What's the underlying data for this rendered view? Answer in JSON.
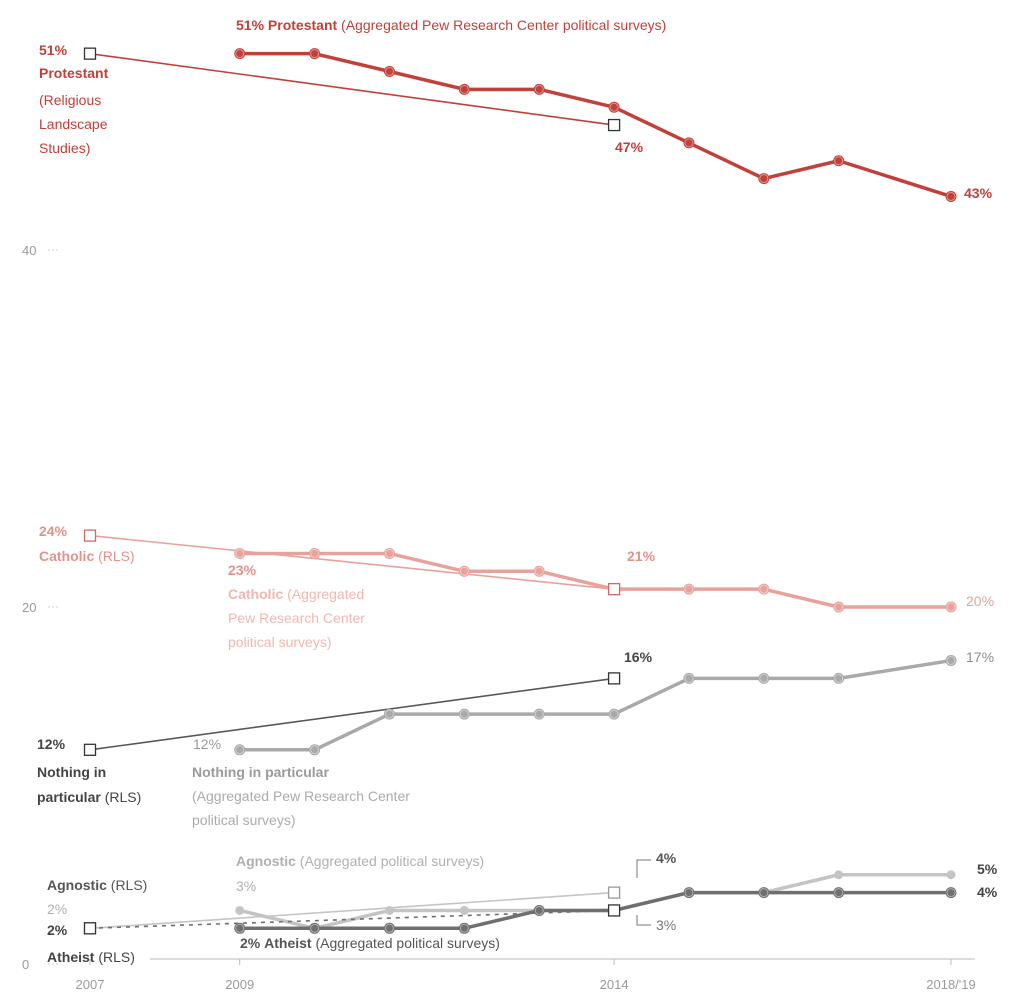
{
  "chart_data": {
    "type": "line",
    "x_ticks": [
      "2007",
      "2009",
      "2014",
      "2018/'19"
    ],
    "y_ticks": [
      {
        "value": 0,
        "label": "0"
      },
      {
        "value": 20,
        "label": "20"
      },
      {
        "value": 40,
        "label": "40"
      }
    ],
    "ylim": [
      0,
      52
    ],
    "grid": false,
    "colors": {
      "protestant": "#c1403a",
      "catholic": "#e8a29c",
      "nothing": "#a9a9a9",
      "nothing_rls": "#595959",
      "agnostic": "#c4c4c4",
      "atheist": "#6f6f6f",
      "axis_text": "#9a9a9a"
    },
    "series": [
      {
        "key": "protestant",
        "source": "survey",
        "x": [
          2009,
          2010,
          2011,
          2012,
          2013,
          2014,
          2015,
          2016,
          2017,
          2018.5
        ],
        "values": [
          51,
          51,
          50,
          49,
          49,
          48,
          46,
          44,
          45,
          43
        ]
      },
      {
        "key": "protestant",
        "source": "rls",
        "x": [
          2007,
          2014
        ],
        "values": [
          51,
          47
        ]
      },
      {
        "key": "catholic",
        "source": "survey",
        "x": [
          2009,
          2010,
          2011,
          2012,
          2013,
          2014,
          2015,
          2016,
          2017,
          2018.5
        ],
        "values": [
          23,
          23,
          23,
          22,
          22,
          21,
          21,
          21,
          20,
          20
        ]
      },
      {
        "key": "catholic",
        "source": "rls",
        "x": [
          2007,
          2014
        ],
        "values": [
          24,
          21
        ]
      },
      {
        "key": "nothing",
        "source": "survey",
        "x": [
          2009,
          2010,
          2011,
          2012,
          2013,
          2014,
          2015,
          2016,
          2017,
          2018.5
        ],
        "values": [
          12,
          12,
          14,
          14,
          14,
          14,
          16,
          16,
          16,
          17
        ]
      },
      {
        "key": "nothing_rls",
        "source": "rls",
        "x": [
          2007,
          2014
        ],
        "values": [
          12,
          16
        ]
      },
      {
        "key": "agnostic",
        "source": "survey",
        "x": [
          2009,
          2010,
          2011,
          2012,
          2013,
          2014,
          2015,
          2016,
          2017,
          2018.5
        ],
        "values": [
          3,
          2,
          3,
          3,
          3,
          3,
          4,
          4,
          5,
          5
        ]
      },
      {
        "key": "agnostic",
        "source": "rls",
        "x": [
          2007,
          2014
        ],
        "values": [
          2,
          4
        ]
      },
      {
        "key": "atheist",
        "source": "survey",
        "x": [
          2009,
          2010,
          2011,
          2012,
          2013,
          2014,
          2015,
          2016,
          2017,
          2018.5
        ],
        "values": [
          2,
          2,
          2,
          2,
          3,
          3,
          4,
          4,
          4,
          4
        ]
      },
      {
        "key": "atheist",
        "source": "rls",
        "x": [
          2007,
          2014
        ],
        "values": [
          2,
          3
        ]
      }
    ],
    "labels": {
      "protestant_survey_start_pct": "51%",
      "protestant_survey_name": "Protestant",
      "protestant_survey_source": "(Aggregated Pew Research Center political surveys)",
      "protestant_rls_pct": "51%",
      "protestant_rls_name": "Protestant",
      "protestant_rls_src1": "(Religious",
      "protestant_rls_src2": "Landscape",
      "protestant_rls_src3": "Studies)",
      "protestant_2014": "47%",
      "protestant_end": "43%",
      "catholic_rls_pct": "24%",
      "catholic_rls_name": "Catholic",
      "catholic_rls_src": "(RLS)",
      "catholic_survey_pct": "23%",
      "catholic_survey_name": "Catholic",
      "catholic_survey_src1": "(Aggregated",
      "catholic_survey_src2": "Pew Research Center",
      "catholic_survey_src3": "political surveys)",
      "catholic_2014": "21%",
      "catholic_end": "20%",
      "nothing_2014": "16%",
      "nothing_end": "17%",
      "nothing_rls_pct": "12%",
      "nothing_rls_name1": "Nothing in",
      "nothing_rls_name2": "particular",
      "nothing_rls_src": "(RLS)",
      "nothing_survey_pct": "12%",
      "nothing_survey_name": "Nothing in particular",
      "nothing_survey_src1": "(Aggregated Pew Research Center",
      "nothing_survey_src2": "political surveys)",
      "agnostic_survey_name": "Agnostic",
      "agnostic_survey_src": "(Aggregated political surveys)",
      "agnostic_survey_pct": "3%",
      "agnostic_rls_name": "Agnostic",
      "agnostic_rls_src": "(RLS)",
      "agnostic_rls_pct": "2%",
      "agnostic_2014": "4%",
      "agnostic_end": "5%",
      "atheist_rls_pct": "2%",
      "atheist_rls_name": "Atheist",
      "atheist_rls_src": "(RLS)",
      "atheist_survey_pct": "2%",
      "atheist_survey_name": "Atheist",
      "atheist_survey_src": "(Aggregated political surveys)",
      "atheist_2014": "3%",
      "atheist_end": "4%"
    }
  }
}
